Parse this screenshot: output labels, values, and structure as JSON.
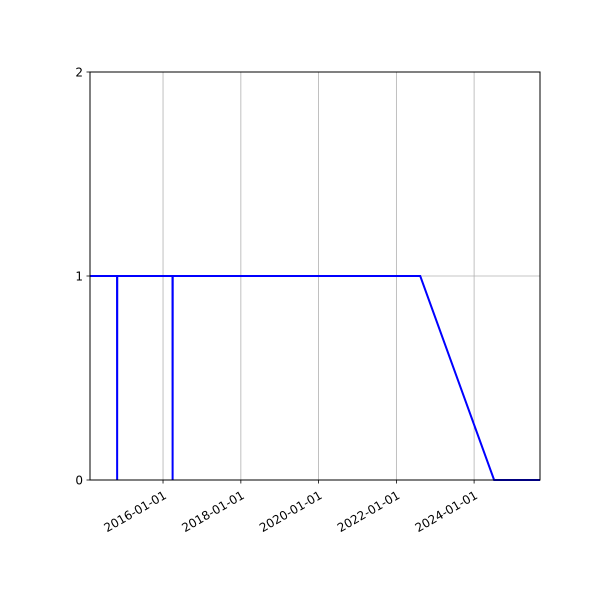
{
  "chart_data": {
    "type": "line",
    "title": "",
    "xlabel": "",
    "ylabel": "",
    "x_type": "date",
    "xlim": [
      "2014-02-14",
      "2025-09-11"
    ],
    "ylim": [
      0,
      2
    ],
    "grid": true,
    "x_ticks": [
      "2016-01-01",
      "2018-01-01",
      "2020-01-01",
      "2022-01-01",
      "2024-01-01"
    ],
    "y_ticks": [
      0,
      1,
      2
    ],
    "series": [
      {
        "color": "#0000ff",
        "x": [
          "2014-02-14",
          "2014-10-26",
          "2014-10-27",
          "2014-10-28",
          "2016-03-30",
          "2016-03-31",
          "2016-04-01",
          "2022-08-13",
          "2024-07-07",
          "2025-09-11"
        ],
        "y": [
          1,
          1,
          0,
          1,
          1,
          0,
          1,
          1,
          0,
          0
        ]
      }
    ]
  }
}
